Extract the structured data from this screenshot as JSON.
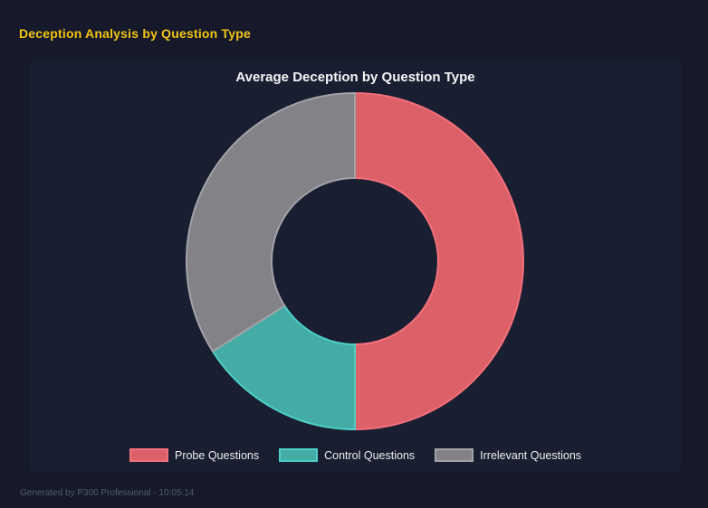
{
  "page": {
    "title": "Deception Analysis by Question Type",
    "footer": "Generated by P300 Professional - 10:05:14"
  },
  "colors": {
    "page_bg": "#151929",
    "panel_bg": "#1A1E31",
    "header_text": "#F1C40F",
    "chart_title": "#F5F5F5",
    "legend_text": "#EDEDF0",
    "footer_text": "#565C6D"
  },
  "chart_data": {
    "type": "pie",
    "variant": "donut",
    "title": "Average Deception by Question Type",
    "categories": [
      "Probe Questions",
      "Control Questions",
      "Irrelevant Questions"
    ],
    "values": [
      50,
      16,
      34
    ],
    "value_unit": "percent_of_circle",
    "segment_fill_colors": [
      "#DB6067",
      "#44ABA5",
      "#828287"
    ],
    "segment_border_colors": [
      "#F4707B",
      "#4CCFC6",
      "#A2A2A7"
    ],
    "legend_position": "bottom",
    "cutout_percent": 50,
    "start_angle_deg": 0,
    "direction": "clockwise"
  }
}
